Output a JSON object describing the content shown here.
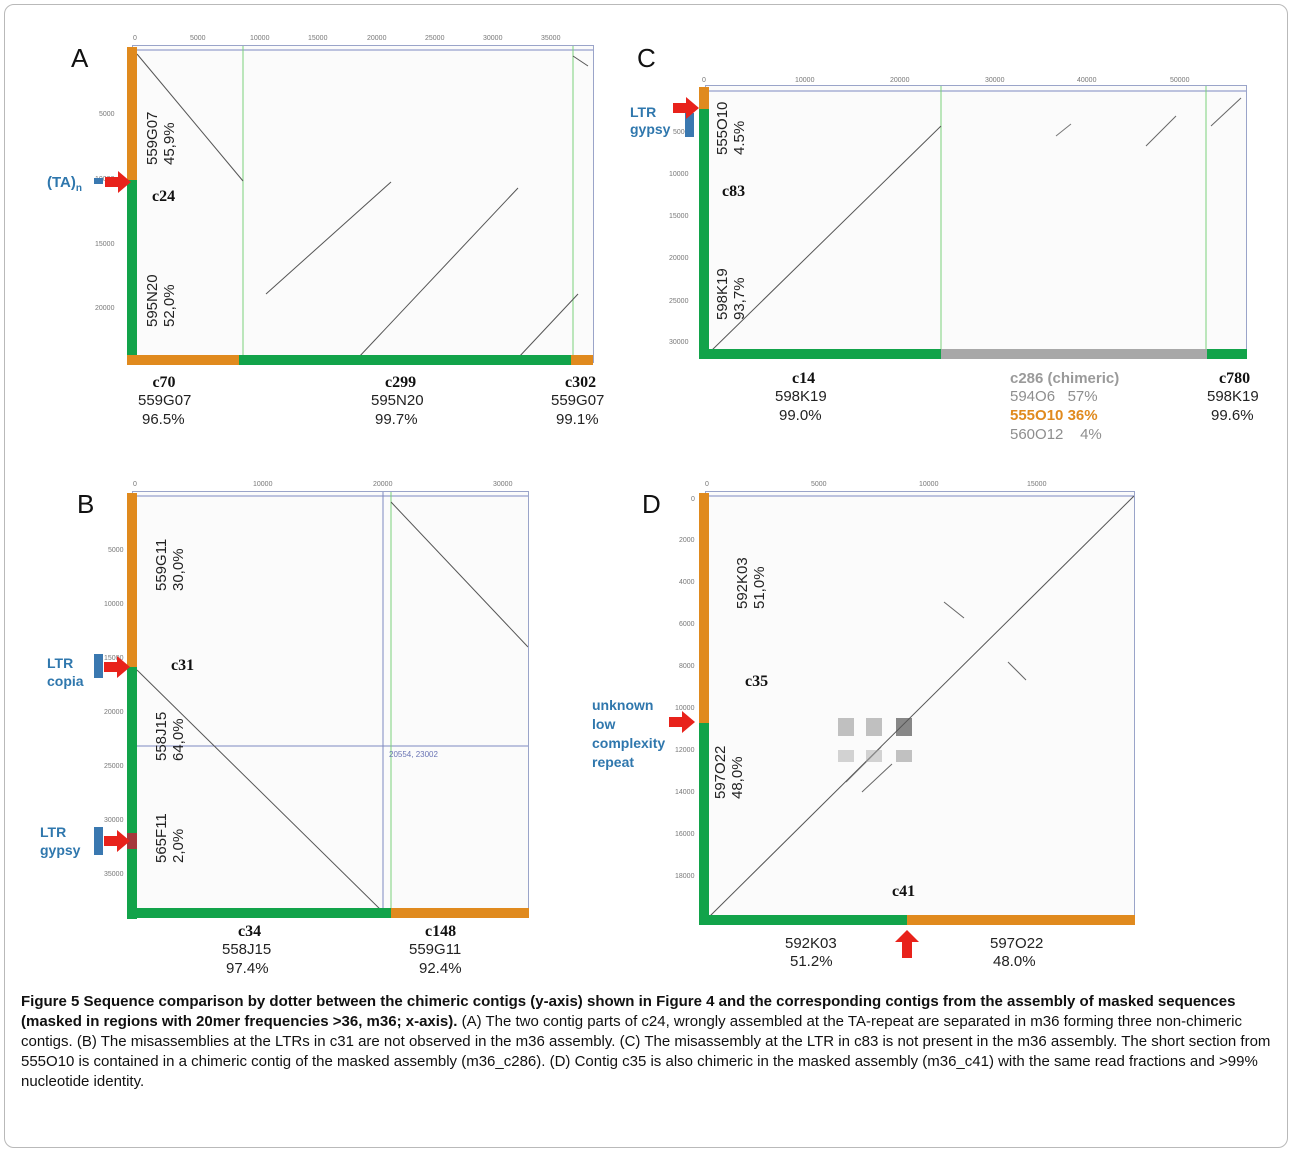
{
  "panels": {
    "A": {
      "letter": "A",
      "y_segments": [
        {
          "label": "559G07",
          "pct": "45,9%"
        },
        {
          "label": "595N20",
          "pct": "52,0%"
        }
      ],
      "y_contig": "c24",
      "repeat": "(TA)",
      "repeat_sub": "n",
      "x_ticks": [
        "0",
        "5000",
        "10000",
        "15000",
        "20000",
        "25000",
        "30000",
        "35000"
      ],
      "y_ticks": [
        "5000",
        "10000",
        "15000",
        "20000"
      ],
      "x_contigs": [
        {
          "name": "c70",
          "clone": "559G07",
          "pct": "96.5%"
        },
        {
          "name": "c299",
          "clone": "595N20",
          "pct": "99.7%"
        },
        {
          "name": "c302",
          "clone": "559G07",
          "pct": "99.1%"
        }
      ]
    },
    "B": {
      "letter": "B",
      "y_segments": [
        {
          "label": "559G11",
          "pct": "30,0%"
        },
        {
          "label": "558J15",
          "pct": "64,0%"
        },
        {
          "label": "565F11",
          "pct": "2,0%"
        }
      ],
      "y_contig": "c31",
      "repeat1": [
        "LTR",
        "copia"
      ],
      "repeat2": [
        "LTR",
        "gypsy"
      ],
      "x_ticks": [
        "0",
        "10000",
        "20000",
        "30000"
      ],
      "y_ticks": [
        "5000",
        "10000",
        "15000",
        "20000",
        "25000",
        "30000",
        "35000"
      ],
      "crosshair_label": "20554, 23002",
      "x_contigs": [
        {
          "name": "c34",
          "clone": "558J15",
          "pct": "97.4%"
        },
        {
          "name": "c148",
          "clone": "559G11",
          "pct": "92.4%"
        }
      ]
    },
    "C": {
      "letter": "C",
      "y_segments": [
        {
          "label": "555O10",
          "pct": "4.5%"
        },
        {
          "label": "598K19",
          "pct": "93,7%"
        }
      ],
      "y_contig": "c83",
      "repeat": [
        "LTR",
        "gypsy"
      ],
      "x_ticks": [
        "0",
        "10000",
        "20000",
        "30000",
        "40000",
        "50000"
      ],
      "y_ticks": [
        "5000",
        "10000",
        "15000",
        "20000",
        "25000",
        "30000"
      ],
      "x_contigs": [
        {
          "name": "c14",
          "clone": "598K19",
          "pct": "99.0%"
        },
        {
          "name": "c780",
          "clone": "598K19",
          "pct": "99.6%"
        }
      ],
      "chimeric": {
        "name": "c286 (chimeric)",
        "rows": [
          {
            "clone": "594O6",
            "pct": "57%"
          },
          {
            "clone": "555O10",
            "pct": "36%"
          },
          {
            "clone": "560O12",
            "pct": "4%"
          }
        ]
      }
    },
    "D": {
      "letter": "D",
      "y_segments": [
        {
          "label": "592K03",
          "pct": "51,0%"
        },
        {
          "label": "597O22",
          "pct": "48,0%"
        }
      ],
      "y_contig": "c35",
      "repeat": [
        "unknown",
        "low",
        "complexity",
        "repeat"
      ],
      "x_contig": "c41",
      "x_ticks": [
        "0",
        "5000",
        "10000",
        "15000"
      ],
      "y_ticks": [
        "0",
        "2000",
        "4000",
        "6000",
        "8000",
        "10000",
        "12000",
        "14000",
        "16000",
        "18000"
      ],
      "x_segments": [
        {
          "clone": "592K03",
          "pct": "51.2%"
        },
        {
          "clone": "597O22",
          "pct": "48.0%"
        }
      ]
    }
  },
  "caption": {
    "title": "Figure 5 Sequence comparison by dotter between the chimeric contigs (y-axis) shown in Figure 4 and the corresponding contigs from the assembly of masked sequences (masked in regions with 20mer frequencies >36, m36; x-axis).",
    "body": " (A) The two contig parts of c24, wrongly assembled at the TA-repeat are separated in m36 forming three non-chimeric contigs. (B) The misassemblies at the LTRs in c31 are not observed in the m36 assembly. (C) The misassembly at the LTR in c83 is not present in the m36 assembly. The short section from 555O10 is contained in a chimeric contig of the masked assembly (m36_c286). (D) Contig c35 is also chimeric in the masked assembly (m36_c41) with the same read fractions and >99% nucleotide identity."
  },
  "colors": {
    "green": "#12a34a",
    "orange": "#e08a1e",
    "gray": "#a8a8a8",
    "red_arrow": "#e8221b",
    "repeat_blue": "#3a78b0"
  }
}
